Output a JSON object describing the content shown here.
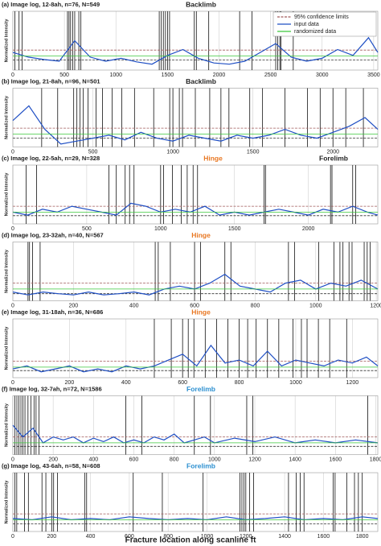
{
  "xlabel": "Fracture location along scanline ft",
  "chart_data": [
    {
      "type": "line",
      "title": "(a) Image log, 12-8ah, n=76, N=549",
      "labels": [
        {
          "text": "Backlimb",
          "color": "#222222"
        }
      ],
      "ylabel": "Normalized Intensity",
      "xlim": [
        0,
        3540
      ],
      "xticks": [
        0,
        500,
        1000,
        1500,
        2000,
        2500,
        3000,
        3500
      ],
      "ylim": [
        0,
        1
      ],
      "x": [
        0,
        150,
        300,
        450,
        600,
        750,
        900,
        1050,
        1200,
        1350,
        1500,
        1650,
        1800,
        1950,
        2100,
        2250,
        2400,
        2550,
        2700,
        2850,
        3000,
        3150,
        3300,
        3450,
        3540
      ],
      "series": [
        {
          "name": "95% confidence limits",
          "color": "#a05a5a",
          "x": [
            0,
            3540
          ],
          "values": [
            0.34,
            0.34
          ],
          "lower": [
            0.17,
            0.17
          ]
        },
        {
          "name": "input data",
          "color": "#1f4fc4",
          "values": [
            0.3,
            0.22,
            0.18,
            0.15,
            0.5,
            0.22,
            0.15,
            0.2,
            0.14,
            0.1,
            0.25,
            0.35,
            0.2,
            0.12,
            0.1,
            0.15,
            0.3,
            0.45,
            0.22,
            0.15,
            0.2,
            0.35,
            0.25,
            0.55,
            0.3
          ]
        },
        {
          "name": "randomized data",
          "color": "#3cc83c",
          "x": [
            0,
            3540
          ],
          "values": [
            0.24,
            0.24
          ]
        }
      ],
      "fractures": [
        20,
        60,
        90,
        530,
        545,
        560,
        580,
        600,
        640,
        660,
        1420,
        1440,
        1460,
        1480,
        1500,
        1520,
        1760,
        1780,
        1900,
        2200,
        2320,
        2550,
        2570,
        2590,
        2600,
        2720
      ]
    },
    {
      "type": "line",
      "title": "(b) Image log, 21-8ah, n=96, N=501",
      "labels": [
        {
          "text": "Backlimb",
          "color": "#222222"
        }
      ],
      "ylabel": "Normalized Intensity",
      "xlim": [
        0,
        2280
      ],
      "xticks": [
        0,
        500,
        1000,
        1500,
        2000
      ],
      "ylim": [
        0,
        1
      ],
      "x": [
        0,
        100,
        200,
        300,
        400,
        500,
        600,
        700,
        800,
        900,
        1000,
        1100,
        1200,
        1300,
        1400,
        1500,
        1600,
        1700,
        1800,
        1900,
        2000,
        2100,
        2200,
        2280
      ],
      "series": [
        {
          "color": "#a05a5a",
          "x": [
            0,
            2280
          ],
          "values": [
            0.32,
            0.32
          ],
          "lower": [
            0.15,
            0.15
          ]
        },
        {
          "color": "#1f4fc4",
          "values": [
            0.45,
            0.7,
            0.3,
            0.05,
            0.1,
            0.15,
            0.2,
            0.12,
            0.25,
            0.15,
            0.1,
            0.2,
            0.15,
            0.1,
            0.2,
            0.15,
            0.2,
            0.3,
            0.2,
            0.15,
            0.25,
            0.35,
            0.5,
            0.3
          ]
        },
        {
          "color": "#3cc83c",
          "x": [
            0,
            2280
          ],
          "values": [
            0.22,
            0.22
          ]
        }
      ],
      "fractures": [
        180,
        280,
        380,
        400,
        420,
        440,
        470,
        520,
        560,
        620,
        680,
        760,
        880,
        980,
        1000,
        1040,
        1060,
        1140,
        1230,
        1300,
        1350,
        1480,
        1560,
        1700,
        1840,
        1920,
        2000,
        2080,
        2190
      ]
    },
    {
      "type": "line",
      "title": "(c) Image log, 22-5ah, n=29, N=328",
      "labels": [
        {
          "text": "Hinge",
          "color": "#e87722"
        },
        {
          "text": "Forelimb",
          "color": "#222222"
        }
      ],
      "ylabel": "Normalized Intensity",
      "xlim": [
        0,
        2470
      ],
      "xticks": [
        0,
        500,
        1000,
        1500,
        2000
      ],
      "ylim": [
        0,
        1
      ],
      "x": [
        0,
        100,
        200,
        300,
        400,
        500,
        600,
        700,
        800,
        900,
        1000,
        1100,
        1200,
        1300,
        1400,
        1500,
        1600,
        1700,
        1800,
        1900,
        2000,
        2100,
        2200,
        2300,
        2400,
        2470
      ],
      "series": [
        {
          "color": "#a05a5a",
          "x": [
            0,
            2470
          ],
          "values": [
            0.3,
            0.3
          ],
          "lower": [
            0.14,
            0.14
          ]
        },
        {
          "color": "#1f4fc4",
          "values": [
            0.2,
            0.15,
            0.25,
            0.2,
            0.3,
            0.25,
            0.2,
            0.15,
            0.35,
            0.3,
            0.2,
            0.25,
            0.2,
            0.3,
            0.15,
            0.2,
            0.15,
            0.2,
            0.25,
            0.2,
            0.15,
            0.25,
            0.2,
            0.3,
            0.2,
            0.15
          ]
        },
        {
          "color": "#3cc83c",
          "x": [
            0,
            2470
          ],
          "values": [
            0.2,
            0.2
          ]
        }
      ],
      "fractures": [
        90,
        160,
        650,
        700,
        760,
        790,
        820,
        1000,
        1020,
        1080,
        1140,
        1180,
        1220,
        1250,
        1700,
        1710,
        2150,
        2160,
        2300,
        2320
      ]
    },
    {
      "type": "line",
      "title": "(d) Image log, 23-32ah, n=40, N=567",
      "labels": [
        {
          "text": "Hinge",
          "color": "#e87722"
        }
      ],
      "ylabel": "Normalized Intensity",
      "xlim": [
        0,
        1205
      ],
      "xticks": [
        0,
        200,
        400,
        600,
        800,
        1000,
        1200
      ],
      "ylim": [
        0,
        1
      ],
      "x": [
        0,
        50,
        100,
        150,
        200,
        250,
        300,
        350,
        400,
        450,
        500,
        550,
        600,
        650,
        700,
        750,
        800,
        850,
        900,
        950,
        1000,
        1050,
        1100,
        1150,
        1205
      ],
      "series": [
        {
          "color": "#a05a5a",
          "x": [
            0,
            1205
          ],
          "values": [
            0.3,
            0.3
          ],
          "lower": [
            0.12,
            0.12
          ]
        },
        {
          "color": "#1f4fc4",
          "values": [
            0.15,
            0.1,
            0.15,
            0.12,
            0.1,
            0.15,
            0.1,
            0.12,
            0.15,
            0.1,
            0.2,
            0.25,
            0.2,
            0.3,
            0.45,
            0.25,
            0.2,
            0.15,
            0.3,
            0.35,
            0.2,
            0.3,
            0.25,
            0.35,
            0.2
          ]
        },
        {
          "color": "#3cc83c",
          "x": [
            0,
            1205
          ],
          "values": [
            0.2,
            0.2
          ]
        }
      ],
      "fractures": [
        50,
        55,
        65,
        90,
        470,
        480,
        520,
        600,
        620,
        700,
        720,
        910,
        930,
        1010,
        1060,
        1080,
        1090,
        1110,
        1120,
        1160,
        1170,
        1180
      ]
    },
    {
      "type": "line",
      "title": "(e) Image log, 31-18ah, n=36, N=686",
      "labels": [
        {
          "text": "Hinge",
          "color": "#e87722"
        }
      ],
      "ylabel": "Normalized Intensity",
      "xlim": [
        0,
        1290
      ],
      "xticks": [
        0,
        200,
        400,
        600,
        800,
        1000,
        1200
      ],
      "ylim": [
        0,
        1
      ],
      "x": [
        0,
        50,
        100,
        150,
        200,
        250,
        300,
        350,
        400,
        450,
        500,
        550,
        600,
        650,
        700,
        750,
        800,
        850,
        900,
        950,
        1000,
        1050,
        1100,
        1150,
        1200,
        1250,
        1290
      ],
      "series": [
        {
          "color": "#a05a5a",
          "x": [
            0,
            1290
          ],
          "values": [
            0.28,
            0.28
          ],
          "lower": [
            0.12,
            0.12
          ]
        },
        {
          "color": "#1f4fc4",
          "values": [
            0.15,
            0.2,
            0.1,
            0.15,
            0.2,
            0.1,
            0.15,
            0.1,
            0.2,
            0.15,
            0.2,
            0.3,
            0.4,
            0.2,
            0.55,
            0.25,
            0.3,
            0.2,
            0.45,
            0.2,
            0.3,
            0.25,
            0.2,
            0.3,
            0.25,
            0.35,
            0.2
          ]
        },
        {
          "color": "#3cc83c",
          "x": [
            0,
            1290
          ],
          "values": [
            0.18,
            0.18
          ]
        }
      ],
      "fractures": [
        500,
        560,
        600,
        620,
        640,
        680,
        720,
        760,
        800,
        830,
        860,
        900,
        940,
        990,
        1020,
        1040,
        1080,
        1120,
        1180
      ]
    },
    {
      "type": "line",
      "title": "(f) Image log, 32-7ah, n=72, N=1586",
      "labels": [
        {
          "text": "Forelimb",
          "color": "#2b8fd0"
        }
      ],
      "ylabel": "Normalized Intensity",
      "xlim": [
        0,
        1810
      ],
      "xticks": [
        0,
        200,
        400,
        600,
        800,
        1000,
        1200,
        1400,
        1600,
        1800
      ],
      "ylim": [
        0,
        1
      ],
      "x": [
        0,
        50,
        100,
        150,
        200,
        250,
        300,
        350,
        400,
        450,
        500,
        550,
        600,
        650,
        700,
        750,
        800,
        850,
        900,
        950,
        1000,
        1100,
        1200,
        1300,
        1400,
        1500,
        1600,
        1700,
        1810
      ],
      "series": [
        {
          "color": "#a05a5a",
          "x": [
            0,
            1810
          ],
          "values": [
            0.3,
            0.3
          ],
          "lower": [
            0.14,
            0.14
          ]
        },
        {
          "color": "#1f4fc4",
          "values": [
            0.5,
            0.3,
            0.45,
            0.2,
            0.3,
            0.25,
            0.3,
            0.2,
            0.28,
            0.22,
            0.3,
            0.2,
            0.25,
            0.2,
            0.3,
            0.25,
            0.35,
            0.2,
            0.25,
            0.3,
            0.2,
            0.28,
            0.22,
            0.3,
            0.2,
            0.25,
            0.2,
            0.25,
            0.2
          ]
        },
        {
          "color": "#3cc83c",
          "x": [
            0,
            1810
          ],
          "values": [
            0.2,
            0.2
          ]
        }
      ],
      "fractures": [
        10,
        20,
        30,
        40,
        50,
        60,
        75,
        90,
        105,
        115,
        130,
        560,
        640,
        900,
        980,
        1160,
        1190,
        1760
      ]
    },
    {
      "type": "line",
      "title": "(g) Image log, 43-6ah, n=58, N=608",
      "labels": [
        {
          "text": "Forelimb",
          "color": "#2b8fd0"
        }
      ],
      "ylabel": "Normalized Intensity",
      "xlim": [
        0,
        1880
      ],
      "xticks": [
        0,
        200,
        400,
        600,
        800,
        1000,
        1200,
        1400,
        1600,
        1800
      ],
      "ylim": [
        0,
        1
      ],
      "x": [
        0,
        100,
        200,
        300,
        400,
        500,
        600,
        700,
        800,
        900,
        1000,
        1100,
        1200,
        1300,
        1400,
        1500,
        1600,
        1700,
        1800,
        1880
      ],
      "series": [
        {
          "color": "#a05a5a",
          "x": [
            0,
            1880
          ],
          "values": [
            0.3,
            0.3
          ],
          "lower": [
            0.13,
            0.13
          ]
        },
        {
          "color": "#1f4fc4",
          "values": [
            0.22,
            0.2,
            0.25,
            0.2,
            0.22,
            0.2,
            0.25,
            0.22,
            0.2,
            0.22,
            0.2,
            0.25,
            0.2,
            0.22,
            0.25,
            0.2,
            0.22,
            0.2,
            0.25,
            0.22
          ]
        },
        {
          "color": "#3cc83c",
          "x": [
            0,
            1880
          ],
          "values": [
            0.2,
            0.2
          ]
        }
      ],
      "fractures": [
        10,
        20,
        60,
        80,
        150,
        170,
        200,
        210,
        230,
        370,
        380,
        620,
        770,
        980,
        1170,
        1180,
        1190,
        1200,
        1220,
        1240,
        1420,
        1460,
        1480,
        1500,
        1650,
        1660,
        1720,
        1760,
        1780,
        1800
      ]
    }
  ]
}
